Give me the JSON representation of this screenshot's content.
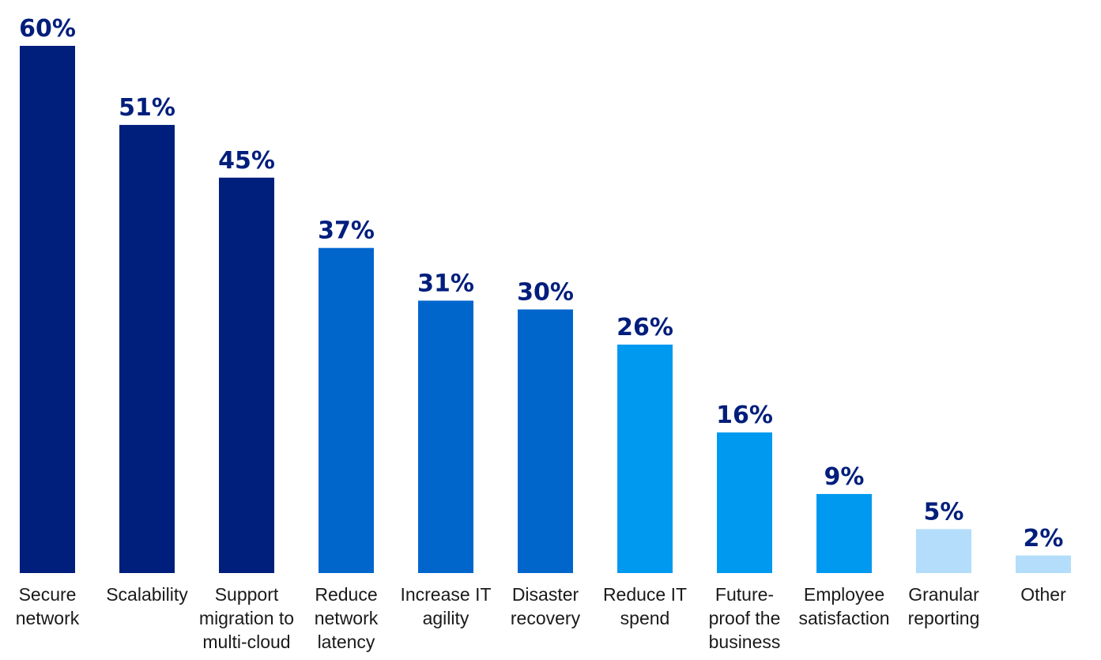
{
  "chart_data": {
    "type": "bar",
    "categories": [
      "Secure network",
      "Scalability",
      "Support migration to multi-cloud",
      "Reduce network latency",
      "Increase IT agility",
      "Disaster recovery",
      "Reduce IT spend",
      "Future-proof the business",
      "Employee satisfaction",
      "Granular reporting",
      "Other"
    ],
    "category_label_lines": [
      [
        "Secure",
        "network"
      ],
      [
        "Scalability"
      ],
      [
        "Support",
        "migration to",
        "multi-cloud"
      ],
      [
        "Reduce",
        "network",
        "latency"
      ],
      [
        "Increase IT",
        "agility"
      ],
      [
        "Disaster",
        "recovery"
      ],
      [
        "Reduce IT",
        "spend"
      ],
      [
        "Future-",
        "proof the",
        "business"
      ],
      [
        "Employee",
        "satisfaction"
      ],
      [
        "Granular",
        "reporting"
      ],
      [
        "Other"
      ]
    ],
    "values": [
      60,
      51,
      45,
      37,
      31,
      30,
      26,
      16,
      9,
      5,
      2
    ],
    "value_labels": [
      "60%",
      "51%",
      "45%",
      "37%",
      "31%",
      "30%",
      "26%",
      "16%",
      "9%",
      "5%",
      "2%"
    ],
    "bar_colors": [
      "#001e7c",
      "#001e7c",
      "#001e7c",
      "#0066cc",
      "#0066cc",
      "#0066cc",
      "#0099f0",
      "#0099f0",
      "#0099f0",
      "#b3ddfa",
      "#b3ddfa"
    ],
    "value_label_color": "#001e7c",
    "title": "",
    "xlabel": "",
    "ylabel": "",
    "ylim": [
      0,
      60
    ],
    "grid": false,
    "legend": false
  }
}
